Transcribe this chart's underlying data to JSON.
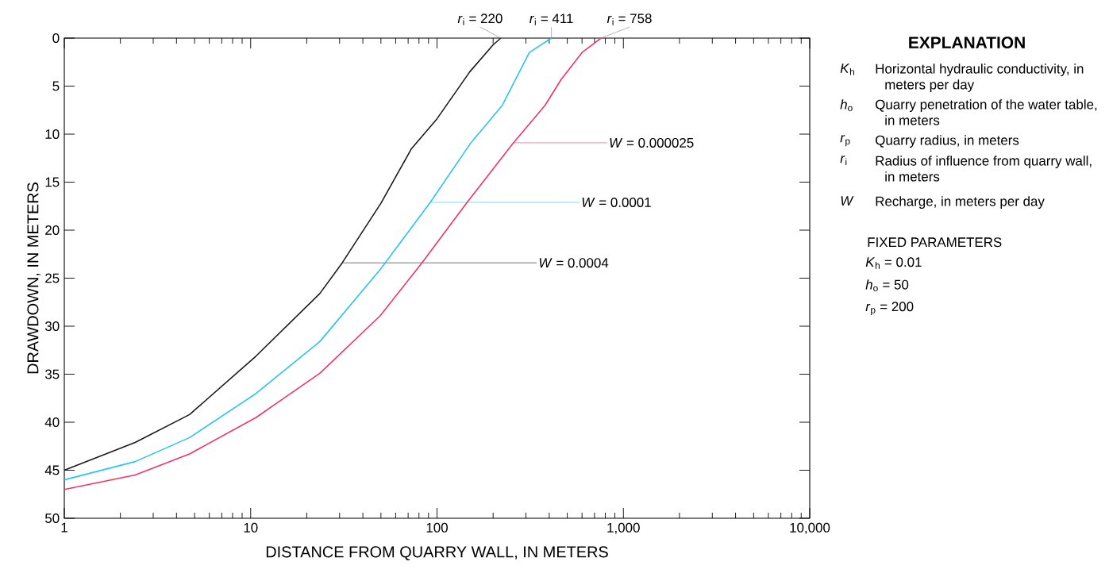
{
  "chart_data": {
    "type": "line",
    "xlabel": "DISTANCE FROM QUARRY WALL, IN METERS",
    "ylabel": "DRAWDOWN, IN METERS",
    "log": "x",
    "grid": false,
    "marker": "none",
    "line_style": "solid",
    "xlim": [
      1,
      10000
    ],
    "ylim": [
      50,
      0
    ],
    "xticks": [
      1,
      10,
      100,
      {
        "value": 1000,
        "label": "1,000"
      },
      {
        "value": 10000,
        "label": "10,000"
      }
    ],
    "yticks": [
      0,
      5,
      10,
      15,
      20,
      25,
      30,
      35,
      40,
      45,
      50
    ],
    "series": [
      {
        "name": "*W* = 0.0004",
        "color": "#1a1a1a",
        "x": [
          1,
          2.4,
          4.7,
          10.7,
          23.5,
          31,
          50,
          73,
          100,
          150,
          200,
          220
        ],
        "values": [
          45.0,
          42.1,
          39.2,
          33.1,
          26.6,
          23.4,
          17.2,
          11.5,
          8.4,
          3.5,
          0.7,
          0
        ]
      },
      {
        "name": "*W* = 0.0001",
        "color": "#29c4ef",
        "x": [
          1,
          2.4,
          4.7,
          10.7,
          23.5,
          50,
          92,
          152,
          224,
          313,
          411
        ],
        "values": [
          46.0,
          44.1,
          41.6,
          37.0,
          31.6,
          24.0,
          17.1,
          10.9,
          7.0,
          1.5,
          0
        ]
      },
      {
        "name": "*W* = 0.000025",
        "color": "#f0346a",
        "x": [
          1,
          2.4,
          4.7,
          10.7,
          23.5,
          49.6,
          83,
          145,
          257,
          380,
          464,
          600,
          758
        ],
        "values": [
          47.0,
          45.5,
          43.3,
          39.5,
          34.9,
          28.9,
          23.4,
          17.1,
          10.9,
          7.0,
          4.3,
          1.5,
          0
        ]
      }
    ],
    "annotations": [
      {
        "text": "*r*$_{i}$ = 220",
        "x": 220,
        "y": 0
      },
      {
        "text": "*r*$_{i}$ = 411",
        "x": 411,
        "y": 0
      },
      {
        "text": "*r*$_{i}$ = 758",
        "x": 758,
        "y": 0
      },
      "**EXPLANATION**",
      "*K*$_{h}$",
      "Horizontal hydraulic conductivity, in meters per day",
      "*h*$_{o}$",
      "Quarry penetration of the water table, in meters",
      "*r*$_{p}$",
      "Quarry radius, in meters",
      "*r*$_{i}$",
      "Radius of influence from quarry wall, in meters",
      "*W*",
      "Recharge, in meters per day",
      "FIXED PARAMETERS",
      "*K*$_{h}$ = 0.01",
      "*h*$_{o}$ = 50",
      "*r*$_{p}$ = 200"
    ]
  }
}
